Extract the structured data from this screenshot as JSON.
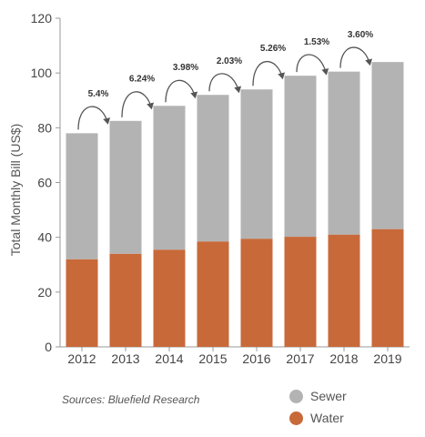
{
  "chart_data": {
    "type": "bar",
    "stacked": true,
    "categories": [
      "2012",
      "2013",
      "2014",
      "2015",
      "2016",
      "2017",
      "2018",
      "2019"
    ],
    "series": [
      {
        "name": "Water",
        "color": "#C8693A",
        "values": [
          32,
          34,
          35.5,
          38.5,
          39.5,
          40.2,
          41,
          43
        ]
      },
      {
        "name": "Sewer",
        "color": "#B3B3B3",
        "values": [
          46,
          48.5,
          52.5,
          53.5,
          54.5,
          58.8,
          59.5,
          61
        ]
      }
    ],
    "growth_labels": [
      "5.4%",
      "6.24%",
      "3.98%",
      "2.03%",
      "5.26%",
      "1.53%",
      "3.60%"
    ],
    "ylabel": "Total Monthly Bill (US$)",
    "ylim": [
      0,
      120
    ],
    "yticks": [
      0,
      20,
      40,
      60,
      80,
      100,
      120
    ],
    "grid": false,
    "legend_position": "bottom-right"
  },
  "source_text": "Sources: Bluefield Research",
  "legend": [
    {
      "label": "Sewer",
      "color": "#B3B3B3"
    },
    {
      "label": "Water",
      "color": "#C8693A"
    }
  ]
}
